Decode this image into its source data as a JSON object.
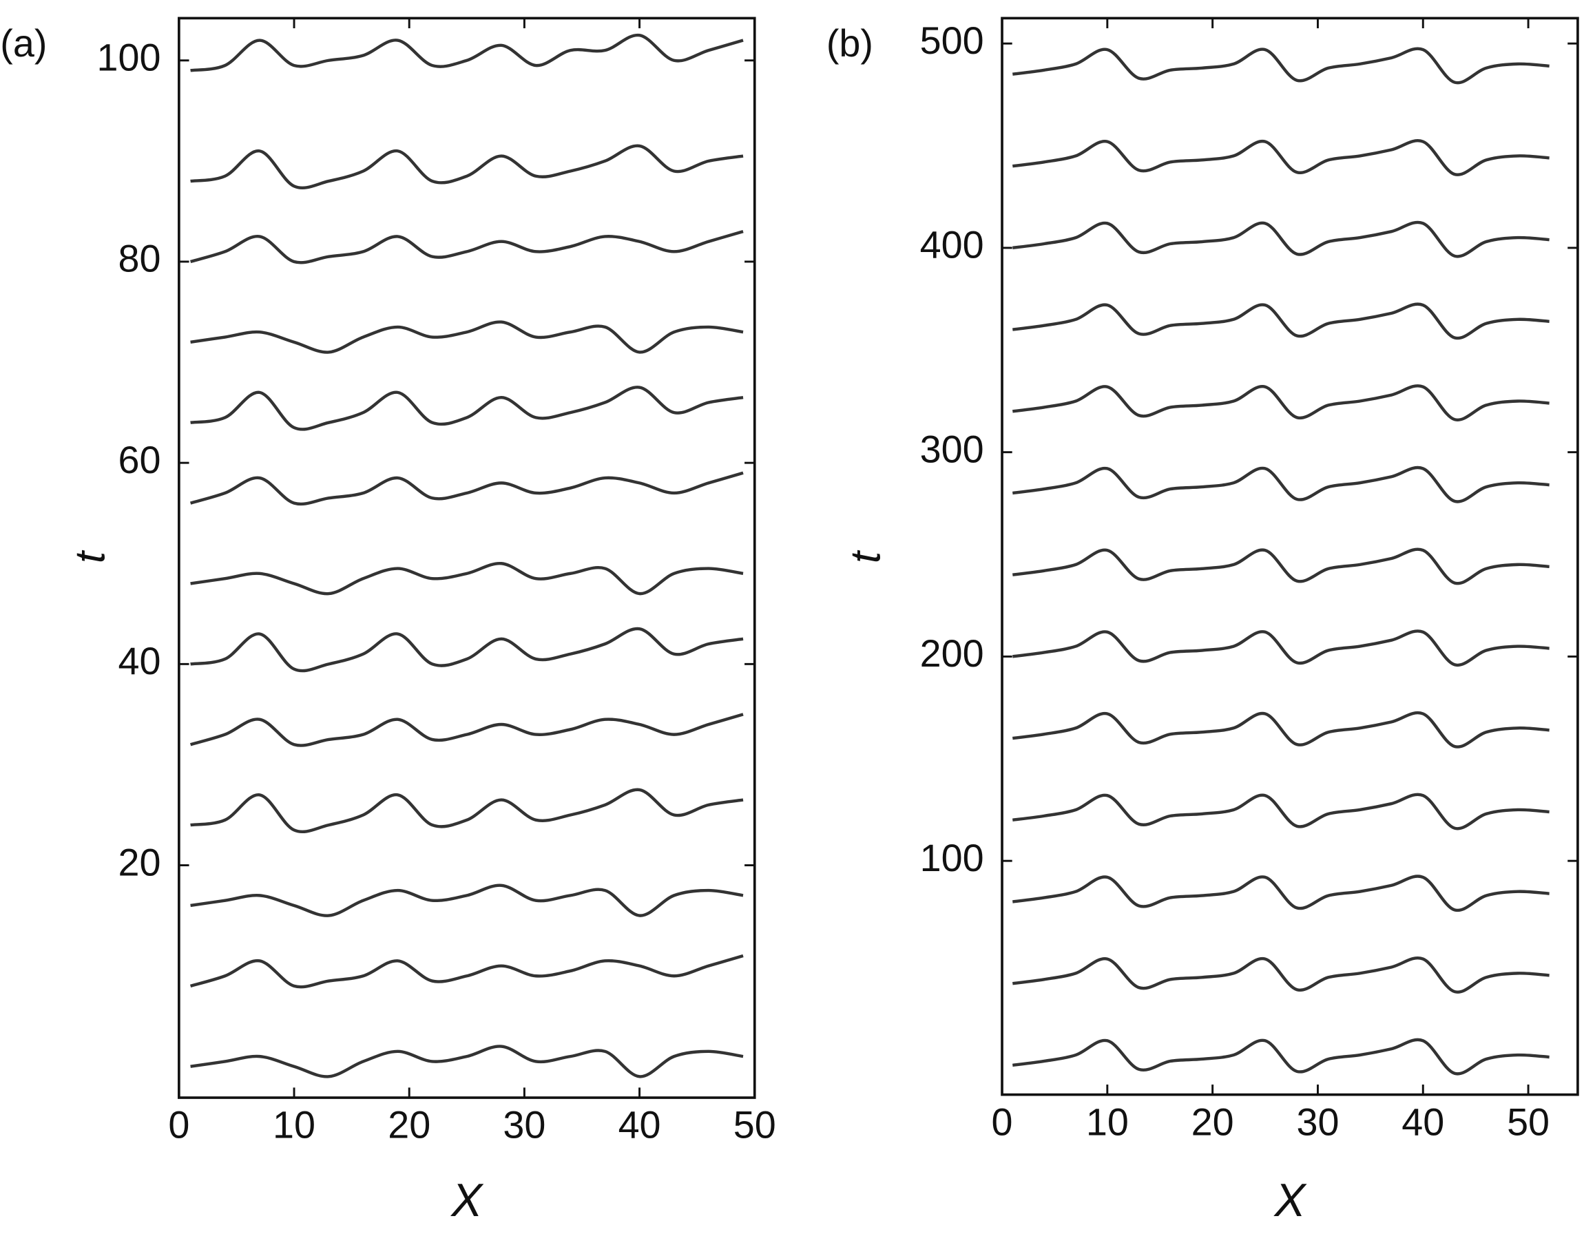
{
  "chart_data": [
    {
      "type": "line",
      "label": "(a)",
      "xlabel": "X",
      "ylabel": "t",
      "color": "#333333",
      "xlim": [
        0,
        50
      ],
      "ylim": [
        -3.1,
        104.2
      ],
      "xticks": [
        0,
        10,
        20,
        30,
        40,
        50
      ],
      "yticks": [
        20,
        40,
        60,
        80,
        100
      ],
      "grid": false,
      "x": [
        1,
        4,
        7,
        10,
        13,
        16,
        19,
        22,
        25,
        28,
        31,
        34,
        37,
        40,
        43,
        46,
        49
      ],
      "series": [
        {
          "values": [
            0,
            0.5,
            1,
            0,
            -1,
            0.5,
            1.5,
            0.5,
            1,
            2,
            0.5,
            1,
            1.5,
            -1,
            1,
            1.5,
            1
          ]
        },
        {
          "values": [
            8,
            9,
            10.5,
            8,
            8.5,
            9,
            10.5,
            8.5,
            9,
            10,
            9,
            9.5,
            10.5,
            10,
            9,
            10,
            11
          ]
        },
        {
          "values": [
            16,
            16.5,
            17,
            16,
            15,
            16.5,
            17.5,
            16.5,
            17,
            18,
            16.5,
            17,
            17.5,
            15,
            17,
            17.5,
            17
          ]
        },
        {
          "values": [
            24,
            24.5,
            27,
            23.5,
            24,
            25,
            27,
            24,
            24.5,
            26.5,
            24.5,
            25,
            26,
            27.5,
            25,
            26,
            26.5
          ]
        },
        {
          "values": [
            32,
            33,
            34.5,
            32,
            32.5,
            33,
            34.5,
            32.5,
            33,
            34,
            33,
            33.5,
            34.5,
            34,
            33,
            34,
            35
          ]
        },
        {
          "values": [
            40,
            40.5,
            43,
            39.5,
            40,
            41,
            43,
            40,
            40.5,
            42.5,
            40.5,
            41,
            42,
            43.5,
            41,
            42,
            42.5
          ]
        },
        {
          "values": [
            48,
            48.5,
            49,
            48,
            47,
            48.5,
            49.5,
            48.5,
            49,
            50,
            48.5,
            49,
            49.5,
            47,
            49,
            49.5,
            49
          ]
        },
        {
          "values": [
            56,
            57,
            58.5,
            56,
            56.5,
            57,
            58.5,
            56.5,
            57,
            58,
            57,
            57.5,
            58.5,
            58,
            57,
            58,
            59
          ]
        },
        {
          "values": [
            64,
            64.5,
            67,
            63.5,
            64,
            65,
            67,
            64,
            64.5,
            66.5,
            64.5,
            65,
            66,
            67.5,
            65,
            66,
            66.5
          ]
        },
        {
          "values": [
            72,
            72.5,
            73,
            72,
            71,
            72.5,
            73.5,
            72.5,
            73,
            74,
            72.5,
            73,
            73.5,
            71,
            73,
            73.5,
            73
          ]
        },
        {
          "values": [
            80,
            81,
            82.5,
            80,
            80.5,
            81,
            82.5,
            80.5,
            81,
            82,
            81,
            81.5,
            82.5,
            82,
            81,
            82,
            83
          ]
        },
        {
          "values": [
            88,
            88.5,
            91,
            87.5,
            88,
            89,
            91,
            88,
            88.5,
            90.5,
            88.5,
            89,
            90,
            91.5,
            89,
            90,
            90.5
          ]
        },
        {
          "values": [
            99,
            99.5,
            102,
            99.5,
            100,
            100.5,
            102,
            99.5,
            100,
            101.5,
            99.5,
            101,
            101,
            102.5,
            100,
            101,
            102
          ]
        }
      ]
    },
    {
      "type": "line",
      "label": "(b)",
      "xlabel": "X",
      "ylabel": "t",
      "color": "#333333",
      "xlim": [
        0,
        54.7
      ],
      "ylim": [
        -14.4,
        512.4
      ],
      "xticks": [
        0,
        10,
        20,
        30,
        40,
        50
      ],
      "yticks": [
        100,
        200,
        300,
        400,
        500
      ],
      "grid": false,
      "x": [
        1,
        4,
        7,
        10,
        13,
        16,
        19,
        22,
        25,
        28,
        31,
        34,
        37,
        40,
        43,
        46,
        49,
        52
      ],
      "series": [
        {
          "values": [
            0,
            2,
            5,
            12,
            -2,
            2,
            3,
            5,
            12,
            -3,
            3,
            5,
            8,
            12,
            -4,
            3,
            5,
            4
          ]
        },
        {
          "values": [
            40,
            42,
            45,
            52,
            38,
            42,
            43,
            45,
            52,
            37,
            43,
            45,
            48,
            52,
            36,
            43,
            45,
            44
          ]
        },
        {
          "values": [
            80,
            82,
            85,
            92,
            78,
            82,
            83,
            85,
            92,
            77,
            83,
            85,
            88,
            92,
            76,
            83,
            85,
            84
          ]
        },
        {
          "values": [
            120,
            122,
            125,
            132,
            118,
            122,
            123,
            125,
            132,
            117,
            123,
            125,
            128,
            132,
            116,
            123,
            125,
            124
          ]
        },
        {
          "values": [
            160,
            162,
            165,
            172,
            158,
            162,
            163,
            165,
            172,
            157,
            163,
            165,
            168,
            172,
            156,
            163,
            165,
            164
          ]
        },
        {
          "values": [
            200,
            202,
            205,
            212,
            198,
            202,
            203,
            205,
            212,
            197,
            203,
            205,
            208,
            212,
            196,
            203,
            205,
            204
          ]
        },
        {
          "values": [
            240,
            242,
            245,
            252,
            238,
            242,
            243,
            245,
            252,
            237,
            243,
            245,
            248,
            252,
            236,
            243,
            245,
            244
          ]
        },
        {
          "values": [
            280,
            282,
            285,
            292,
            278,
            282,
            283,
            285,
            292,
            277,
            283,
            285,
            288,
            292,
            276,
            283,
            285,
            284
          ]
        },
        {
          "values": [
            320,
            322,
            325,
            332,
            318,
            322,
            323,
            325,
            332,
            317,
            323,
            325,
            328,
            332,
            316,
            323,
            325,
            324
          ]
        },
        {
          "values": [
            360,
            362,
            365,
            372,
            358,
            362,
            363,
            365,
            372,
            357,
            363,
            365,
            368,
            372,
            356,
            363,
            365,
            364
          ]
        },
        {
          "values": [
            400,
            402,
            405,
            412,
            398,
            402,
            403,
            405,
            412,
            397,
            403,
            405,
            408,
            412,
            396,
            403,
            405,
            404
          ]
        },
        {
          "values": [
            440,
            442,
            445,
            452,
            438,
            442,
            443,
            445,
            452,
            437,
            443,
            445,
            448,
            452,
            436,
            443,
            445,
            444
          ]
        },
        {
          "values": [
            485,
            487,
            490,
            497,
            483,
            487,
            488,
            490,
            497,
            482,
            488,
            490,
            493,
            497,
            481,
            488,
            490,
            489
          ]
        }
      ]
    }
  ]
}
